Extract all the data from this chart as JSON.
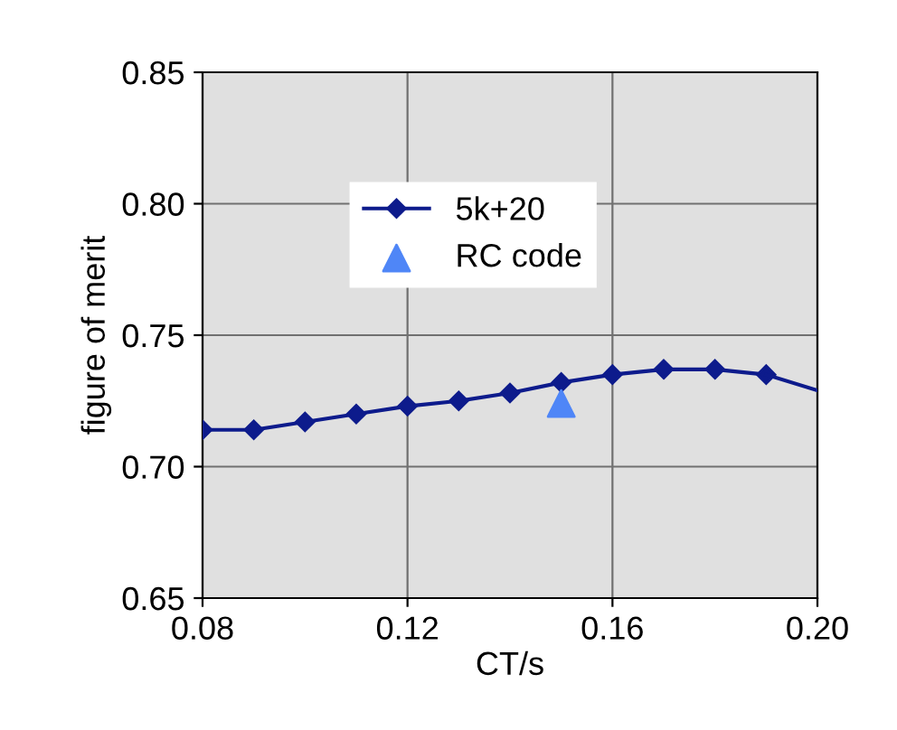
{
  "chart_data": {
    "type": "line",
    "xlabel": "CT/s",
    "ylabel": "figure of merit",
    "xlim": [
      0.08,
      0.2
    ],
    "xticks": [
      {
        "value": 0.08,
        "label": "0.08"
      },
      {
        "value": 0.12,
        "label": "0.12"
      },
      {
        "value": 0.16,
        "label": "0.16"
      },
      {
        "value": 0.2,
        "label": "0.20"
      }
    ],
    "ylim": [
      0.65,
      0.85
    ],
    "yticks": [
      {
        "value": 0.65,
        "label": "0.65"
      },
      {
        "value": 0.7,
        "label": "0.70"
      },
      {
        "value": 0.75,
        "label": "0.75"
      },
      {
        "value": 0.8,
        "label": "0.80"
      },
      {
        "value": 0.85,
        "label": "0.85"
      }
    ],
    "grid": true,
    "legend": "top",
    "series": [
      {
        "name": "5k+20",
        "color": "#0d1b8c",
        "marker": "diamond",
        "x": [
          0.08,
          0.09,
          0.1,
          0.11,
          0.12,
          0.13,
          0.14,
          0.15,
          0.16,
          0.17,
          0.18,
          0.19
        ],
        "values": [
          0.714,
          0.714,
          0.717,
          0.72,
          0.723,
          0.725,
          0.728,
          0.732,
          0.735,
          0.737,
          0.737,
          0.735
        ]
      },
      {
        "color": "#0d1b8c",
        "marker": "none",
        "x": [
          0.19,
          0.2
        ],
        "values": [
          0.735,
          0.729
        ]
      },
      {
        "name": "RC code",
        "type": "scatter",
        "color": "#4f86f7",
        "marker": "triangle",
        "x": [
          0.15
        ],
        "values": [
          0.724
        ]
      }
    ]
  }
}
